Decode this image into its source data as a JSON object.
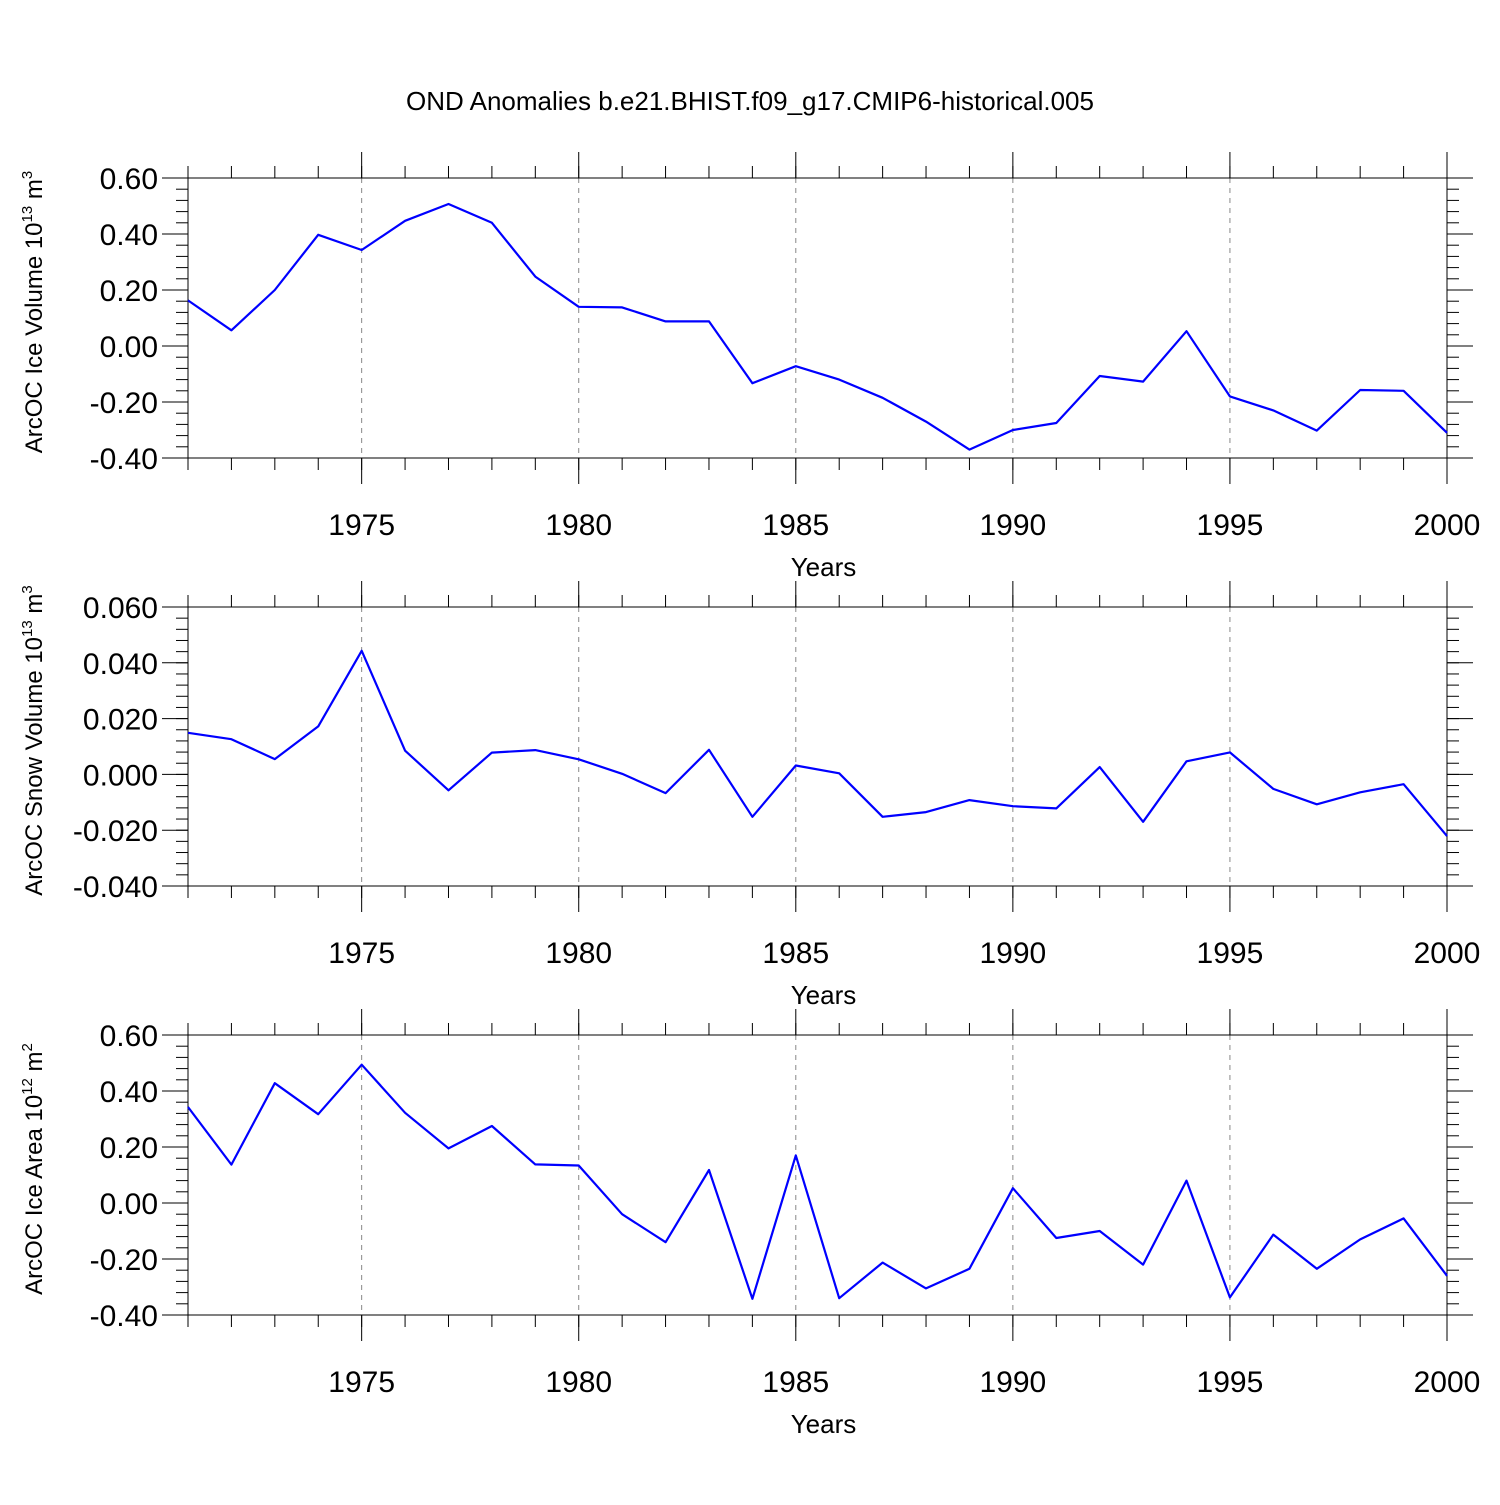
{
  "figure": {
    "title": "OND Anomalies b.e21.BHIST.f09_g17.CMIP6-historical.005"
  },
  "colors": {
    "line": "#0000ff",
    "axis": "#000000",
    "grid": "#888888"
  },
  "chart_data": [
    {
      "type": "line",
      "xlabel": "Years",
      "ylabel": "ArcOC Ice Volume 10",
      "ylabel_exp": "13",
      "ylabel_unit": " m",
      "ylabel_unit_exp": "3",
      "xlim": [
        1971,
        2000
      ],
      "ylim": [
        -0.4,
        0.6
      ],
      "y_major": [
        0.6,
        0.4,
        0.2,
        0.0,
        -0.2,
        -0.4
      ],
      "y_tick_labels": [
        "0.60",
        "0.40",
        "0.20",
        "0.00",
        "-0.20",
        "-0.40"
      ],
      "y_minor_step": 0.04,
      "x_major": [
        1975,
        1980,
        1985,
        1990,
        1995,
        2000
      ],
      "x_tick_labels": [
        "1975",
        "1980",
        "1985",
        "1990",
        "1995",
        "2000"
      ],
      "grid": "dashed vertical at major x ticks",
      "x": [
        1971,
        1972,
        1973,
        1974,
        1975,
        1976,
        1977,
        1978,
        1979,
        1980,
        1981,
        1982,
        1983,
        1984,
        1985,
        1986,
        1987,
        1988,
        1989,
        1990,
        1991,
        1992,
        1993,
        1994,
        1995,
        1996,
        1997,
        1998,
        1999,
        2000
      ],
      "values": [
        0.163,
        0.056,
        0.2,
        0.397,
        0.343,
        0.447,
        0.507,
        0.44,
        0.248,
        0.14,
        0.138,
        0.088,
        0.088,
        -0.133,
        -0.072,
        -0.12,
        -0.185,
        -0.27,
        -0.37,
        -0.3,
        -0.275,
        -0.107,
        -0.127,
        0.053,
        -0.18,
        -0.23,
        -0.302,
        -0.157,
        -0.16,
        -0.31
      ]
    },
    {
      "type": "line",
      "xlabel": "Years",
      "ylabel": "ArcOC Snow Volume 10",
      "ylabel_exp": "13",
      "ylabel_unit": " m",
      "ylabel_unit_exp": "3",
      "xlim": [
        1971,
        2000
      ],
      "ylim": [
        -0.04,
        0.06
      ],
      "y_major": [
        0.06,
        0.04,
        0.02,
        0.0,
        -0.02,
        -0.04
      ],
      "y_tick_labels": [
        "0.060",
        "0.040",
        "0.020",
        "0.000",
        "-0.020",
        "-0.040"
      ],
      "y_minor_step": 0.004,
      "x_major": [
        1975,
        1980,
        1985,
        1990,
        1995,
        2000
      ],
      "x_tick_labels": [
        "1975",
        "1980",
        "1985",
        "1990",
        "1995",
        "2000"
      ],
      "grid": "dashed vertical at major x ticks",
      "x": [
        1971,
        1972,
        1973,
        1974,
        1975,
        1976,
        1977,
        1978,
        1979,
        1980,
        1981,
        1982,
        1983,
        1984,
        1985,
        1986,
        1987,
        1988,
        1989,
        1990,
        1991,
        1992,
        1993,
        1994,
        1995,
        1996,
        1997,
        1998,
        1999,
        2000
      ],
      "values": [
        0.0149,
        0.0126,
        0.0055,
        0.0172,
        0.0443,
        0.0085,
        -0.0057,
        0.0078,
        0.0087,
        0.0054,
        0.0002,
        -0.0067,
        0.0088,
        -0.0152,
        0.0032,
        0.0004,
        -0.0152,
        -0.0135,
        -0.0092,
        -0.0114,
        -0.0122,
        0.0026,
        -0.017,
        0.0047,
        0.0079,
        -0.0052,
        -0.0107,
        -0.0064,
        -0.0035,
        -0.0221
      ]
    },
    {
      "type": "line",
      "xlabel": "Years",
      "ylabel": "ArcOC Ice Area 10",
      "ylabel_exp": "12",
      "ylabel_unit": " m",
      "ylabel_unit_exp": "2",
      "xlim": [
        1971,
        2000
      ],
      "ylim": [
        -0.4,
        0.6
      ],
      "y_major": [
        0.6,
        0.4,
        0.2,
        0.0,
        -0.2,
        -0.4
      ],
      "y_tick_labels": [
        "0.60",
        "0.40",
        "0.20",
        "0.00",
        "-0.20",
        "-0.40"
      ],
      "y_minor_step": 0.04,
      "x_major": [
        1975,
        1980,
        1985,
        1990,
        1995,
        2000
      ],
      "x_tick_labels": [
        "1975",
        "1980",
        "1985",
        "1990",
        "1995",
        "2000"
      ],
      "grid": "dashed vertical at major x ticks",
      "x": [
        1971,
        1972,
        1973,
        1974,
        1975,
        1976,
        1977,
        1978,
        1979,
        1980,
        1981,
        1982,
        1983,
        1984,
        1985,
        1986,
        1987,
        1988,
        1989,
        1990,
        1991,
        1992,
        1993,
        1994,
        1995,
        1996,
        1997,
        1998,
        1999,
        2000
      ],
      "values": [
        0.343,
        0.137,
        0.428,
        0.317,
        0.494,
        0.322,
        0.195,
        0.275,
        0.138,
        0.134,
        -0.04,
        -0.14,
        0.118,
        -0.342,
        0.17,
        -0.34,
        -0.213,
        -0.305,
        -0.235,
        0.053,
        -0.125,
        -0.1,
        -0.22,
        0.08,
        -0.337,
        -0.113,
        -0.235,
        -0.13,
        -0.055,
        -0.26
      ]
    }
  ]
}
